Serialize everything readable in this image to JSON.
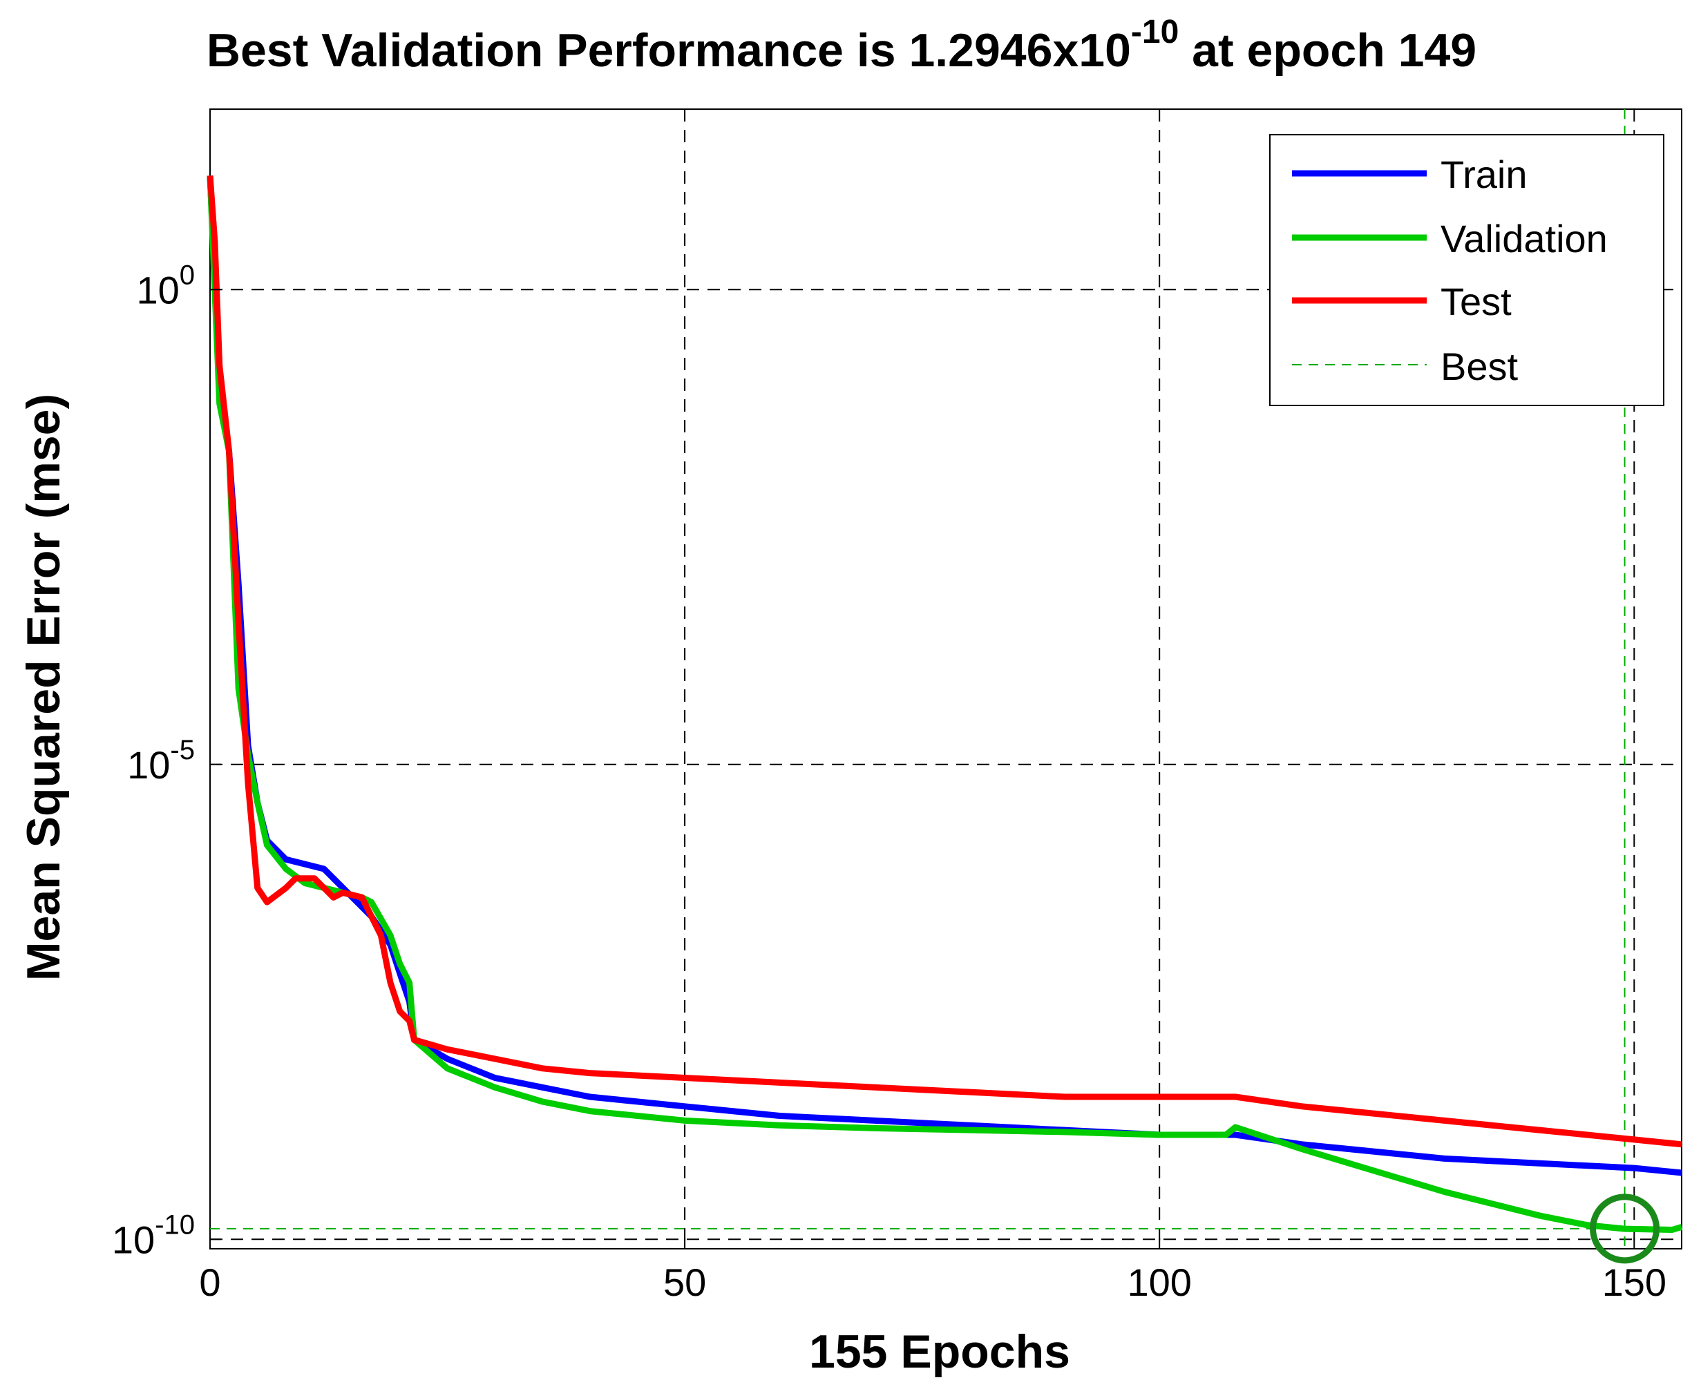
{
  "chart_data": {
    "type": "line",
    "title": {
      "prefix": "Best Validation Performance is 1.2946x10",
      "exponent": "-10",
      "suffix": " at epoch 149"
    },
    "xlabel": "155 Epochs",
    "ylabel": "Mean Squared Error  (mse)",
    "yscale": "log",
    "xlim": [
      0,
      155
    ],
    "ylim_log10": [
      -10.1,
      1.9
    ],
    "grid": true,
    "xticks": [
      {
        "value": 0,
        "label": "0"
      },
      {
        "value": 50,
        "label": "50"
      },
      {
        "value": 100,
        "label": "100"
      },
      {
        "value": 150,
        "label": "150"
      }
    ],
    "yticks": [
      {
        "log10": 0,
        "base": "10",
        "exp": "0"
      },
      {
        "log10": -5,
        "base": "10",
        "exp": "-5"
      },
      {
        "log10": -10,
        "base": "10",
        "exp": "-10"
      }
    ],
    "legend_position": "top-right",
    "series": [
      {
        "name": "Train",
        "color": "#0000ff",
        "style": "solid",
        "x": [
          0,
          1,
          2,
          3,
          4,
          5,
          6,
          8,
          12,
          17,
          19,
          20,
          21,
          21.5,
          25,
          30,
          35,
          40,
          50,
          60,
          70,
          80,
          90,
          100,
          108,
          115,
          120,
          125,
          130,
          140,
          150,
          155
        ],
        "log10y": [
          1.2,
          -1.0,
          -1.7,
          -3.1,
          -4.8,
          -5.4,
          -5.8,
          -6.0,
          -6.1,
          -6.6,
          -6.9,
          -7.2,
          -7.5,
          -7.9,
          -8.1,
          -8.3,
          -8.4,
          -8.5,
          -8.6,
          -8.7,
          -8.75,
          -8.8,
          -8.85,
          -8.9,
          -8.9,
          -9.0,
          -9.05,
          -9.1,
          -9.15,
          -9.2,
          -9.25,
          -9.3
        ]
      },
      {
        "name": "Validation",
        "color": "#00cc00",
        "style": "solid",
        "x": [
          0,
          1,
          2,
          3,
          4,
          5,
          6,
          8,
          10,
          12,
          14,
          16,
          17,
          19,
          20,
          21,
          21.5,
          25,
          30,
          35,
          40,
          50,
          60,
          70,
          80,
          90,
          100,
          107,
          108,
          115,
          120,
          130,
          140,
          145,
          149,
          154,
          155
        ],
        "log10y": [
          1.2,
          -1.2,
          -1.7,
          -4.2,
          -4.9,
          -5.4,
          -5.85,
          -6.1,
          -6.25,
          -6.3,
          -6.35,
          -6.4,
          -6.45,
          -6.8,
          -7.1,
          -7.3,
          -7.9,
          -8.2,
          -8.4,
          -8.55,
          -8.65,
          -8.75,
          -8.8,
          -8.83,
          -8.85,
          -8.87,
          -8.9,
          -8.9,
          -8.82,
          -9.05,
          -9.2,
          -9.5,
          -9.75,
          -9.85,
          -9.89,
          -9.9,
          -9.87
        ]
      },
      {
        "name": "Test",
        "color": "#ff0000",
        "style": "solid",
        "x": [
          0,
          0.5,
          1,
          2,
          3,
          4,
          5,
          6,
          8,
          9,
          11,
          12,
          13,
          14,
          16,
          17,
          18,
          19,
          20,
          21,
          21.5,
          25,
          30,
          35,
          40,
          50,
          60,
          70,
          80,
          90,
          100,
          108,
          115,
          120,
          130,
          140,
          150,
          155
        ],
        "log10y": [
          1.2,
          0.5,
          -0.8,
          -1.7,
          -3.5,
          -5.2,
          -6.3,
          -6.45,
          -6.3,
          -6.2,
          -6.2,
          -6.3,
          -6.4,
          -6.35,
          -6.4,
          -6.6,
          -6.8,
          -7.3,
          -7.6,
          -7.7,
          -7.9,
          -8.0,
          -8.1,
          -8.2,
          -8.25,
          -8.3,
          -8.35,
          -8.4,
          -8.45,
          -8.5,
          -8.5,
          -8.5,
          -8.6,
          -8.65,
          -8.75,
          -8.85,
          -8.95,
          -9.0
        ]
      },
      {
        "name": "Best",
        "color": "#00aa00",
        "style": "dashed",
        "best_epoch": 149,
        "best_log10": -9.888
      }
    ]
  }
}
